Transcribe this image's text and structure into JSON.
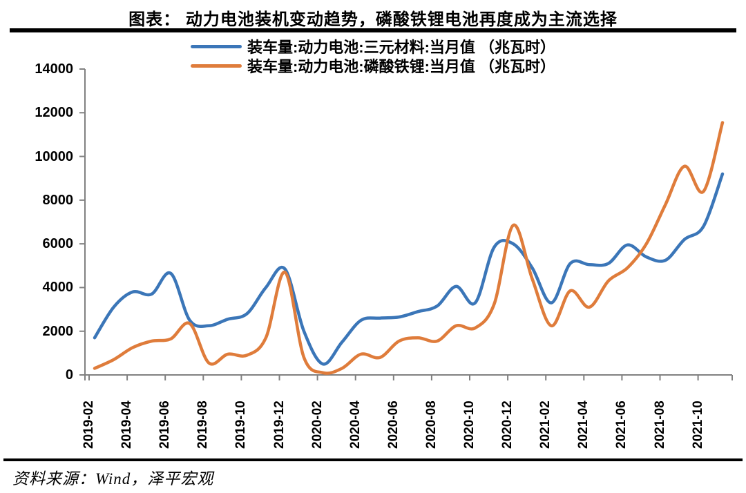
{
  "page": {
    "title": "图表：  动力电池装机变动趋势，磷酸铁锂电池再度成为主流选择",
    "source_note": "资料来源：Wind，泽平宏观"
  },
  "chart_data": {
    "type": "line",
    "title": "动力电池装机变动趋势，磷酸铁锂电池再度成为主流选择",
    "unit": "兆瓦时",
    "grid": false,
    "legend_position": "top",
    "smooth": true,
    "axis_color": "#808080",
    "x": [
      "2019-02",
      "2019-03",
      "2019-04",
      "2019-05",
      "2019-06",
      "2019-07",
      "2019-08",
      "2019-09",
      "2019-10",
      "2019-11",
      "2019-12",
      "2020-01",
      "2020-02",
      "2020-03",
      "2020-04",
      "2020-05",
      "2020-06",
      "2020-07",
      "2020-08",
      "2020-09",
      "2020-10",
      "2020-11",
      "2020-12",
      "2021-01",
      "2021-02",
      "2021-03",
      "2021-04",
      "2021-05",
      "2021-06",
      "2021-07",
      "2021-08",
      "2021-09",
      "2021-10",
      "2021-11"
    ],
    "x_tick_labels": [
      "2019-02",
      "2019-04",
      "2019-06",
      "2019-08",
      "2019-10",
      "2019-12",
      "2020-02",
      "2020-04",
      "2020-06",
      "2020-08",
      "2020-10",
      "2020-12",
      "2021-02",
      "2021-04",
      "2021-06",
      "2021-08",
      "2021-10"
    ],
    "ylim": [
      0,
      14000
    ],
    "yticks": [
      0,
      2000,
      4000,
      6000,
      8000,
      10000,
      12000,
      14000
    ],
    "series": [
      {
        "name": "装车量:动力电池:三元材料:当月值 （兆瓦时）",
        "color": "#3B76B8",
        "values": [
          1700,
          3100,
          3800,
          3700,
          4650,
          2500,
          2250,
          2550,
          2800,
          4000,
          4850,
          2000,
          500,
          1500,
          2500,
          2600,
          2650,
          2900,
          3150,
          4050,
          3300,
          5850,
          6000,
          4900,
          3300,
          5100,
          5050,
          5100,
          5950,
          5400,
          5250,
          6200,
          6800,
          9200
        ]
      },
      {
        "name": "装车量:动力电池:磷酸铁锂:当月值 （兆瓦时）",
        "color": "#DF7C3B",
        "values": [
          300,
          700,
          1250,
          1550,
          1650,
          2350,
          550,
          950,
          900,
          1700,
          4700,
          800,
          100,
          300,
          950,
          800,
          1550,
          1700,
          1550,
          2250,
          2150,
          3250,
          6850,
          4400,
          2250,
          3850,
          3100,
          4300,
          4900,
          6000,
          7800,
          9550,
          8400,
          11550
        ]
      }
    ]
  }
}
